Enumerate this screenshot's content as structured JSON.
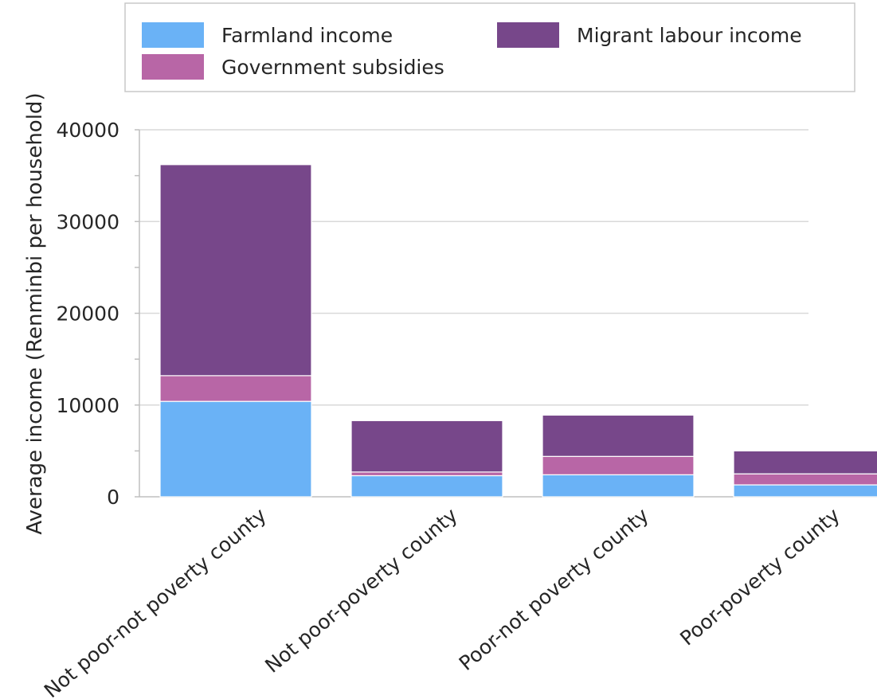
{
  "chart_data": {
    "type": "bar",
    "stacked": true,
    "title": "",
    "xlabel": "",
    "ylabel": "Average income (Renminbi per household)",
    "ylim": [
      0,
      40000
    ],
    "yticks": [
      0,
      10000,
      20000,
      30000,
      40000
    ],
    "ytick_labels": [
      "0",
      "10000",
      "20000",
      "30000",
      "40000"
    ],
    "grid": true,
    "legend_position": "top",
    "categories": [
      "Not poor-not poverty county",
      "Not poor-poverty county",
      "Poor-not poverty county",
      "Poor-poverty county"
    ],
    "series": [
      {
        "name": "Farmland income",
        "color": "#6ab2f6",
        "values": [
          10400,
          2300,
          2400,
          1300
        ]
      },
      {
        "name": "Government subsidies",
        "color": "#b866a6",
        "values": [
          2800,
          400,
          2000,
          1200
        ]
      },
      {
        "name": "Migrant labour income",
        "color": "#77478a",
        "values": [
          23000,
          5600,
          4500,
          2500
        ]
      }
    ],
    "legend_order": [
      "Farmland income",
      "Migrant labour income",
      "Government subsidies"
    ]
  }
}
